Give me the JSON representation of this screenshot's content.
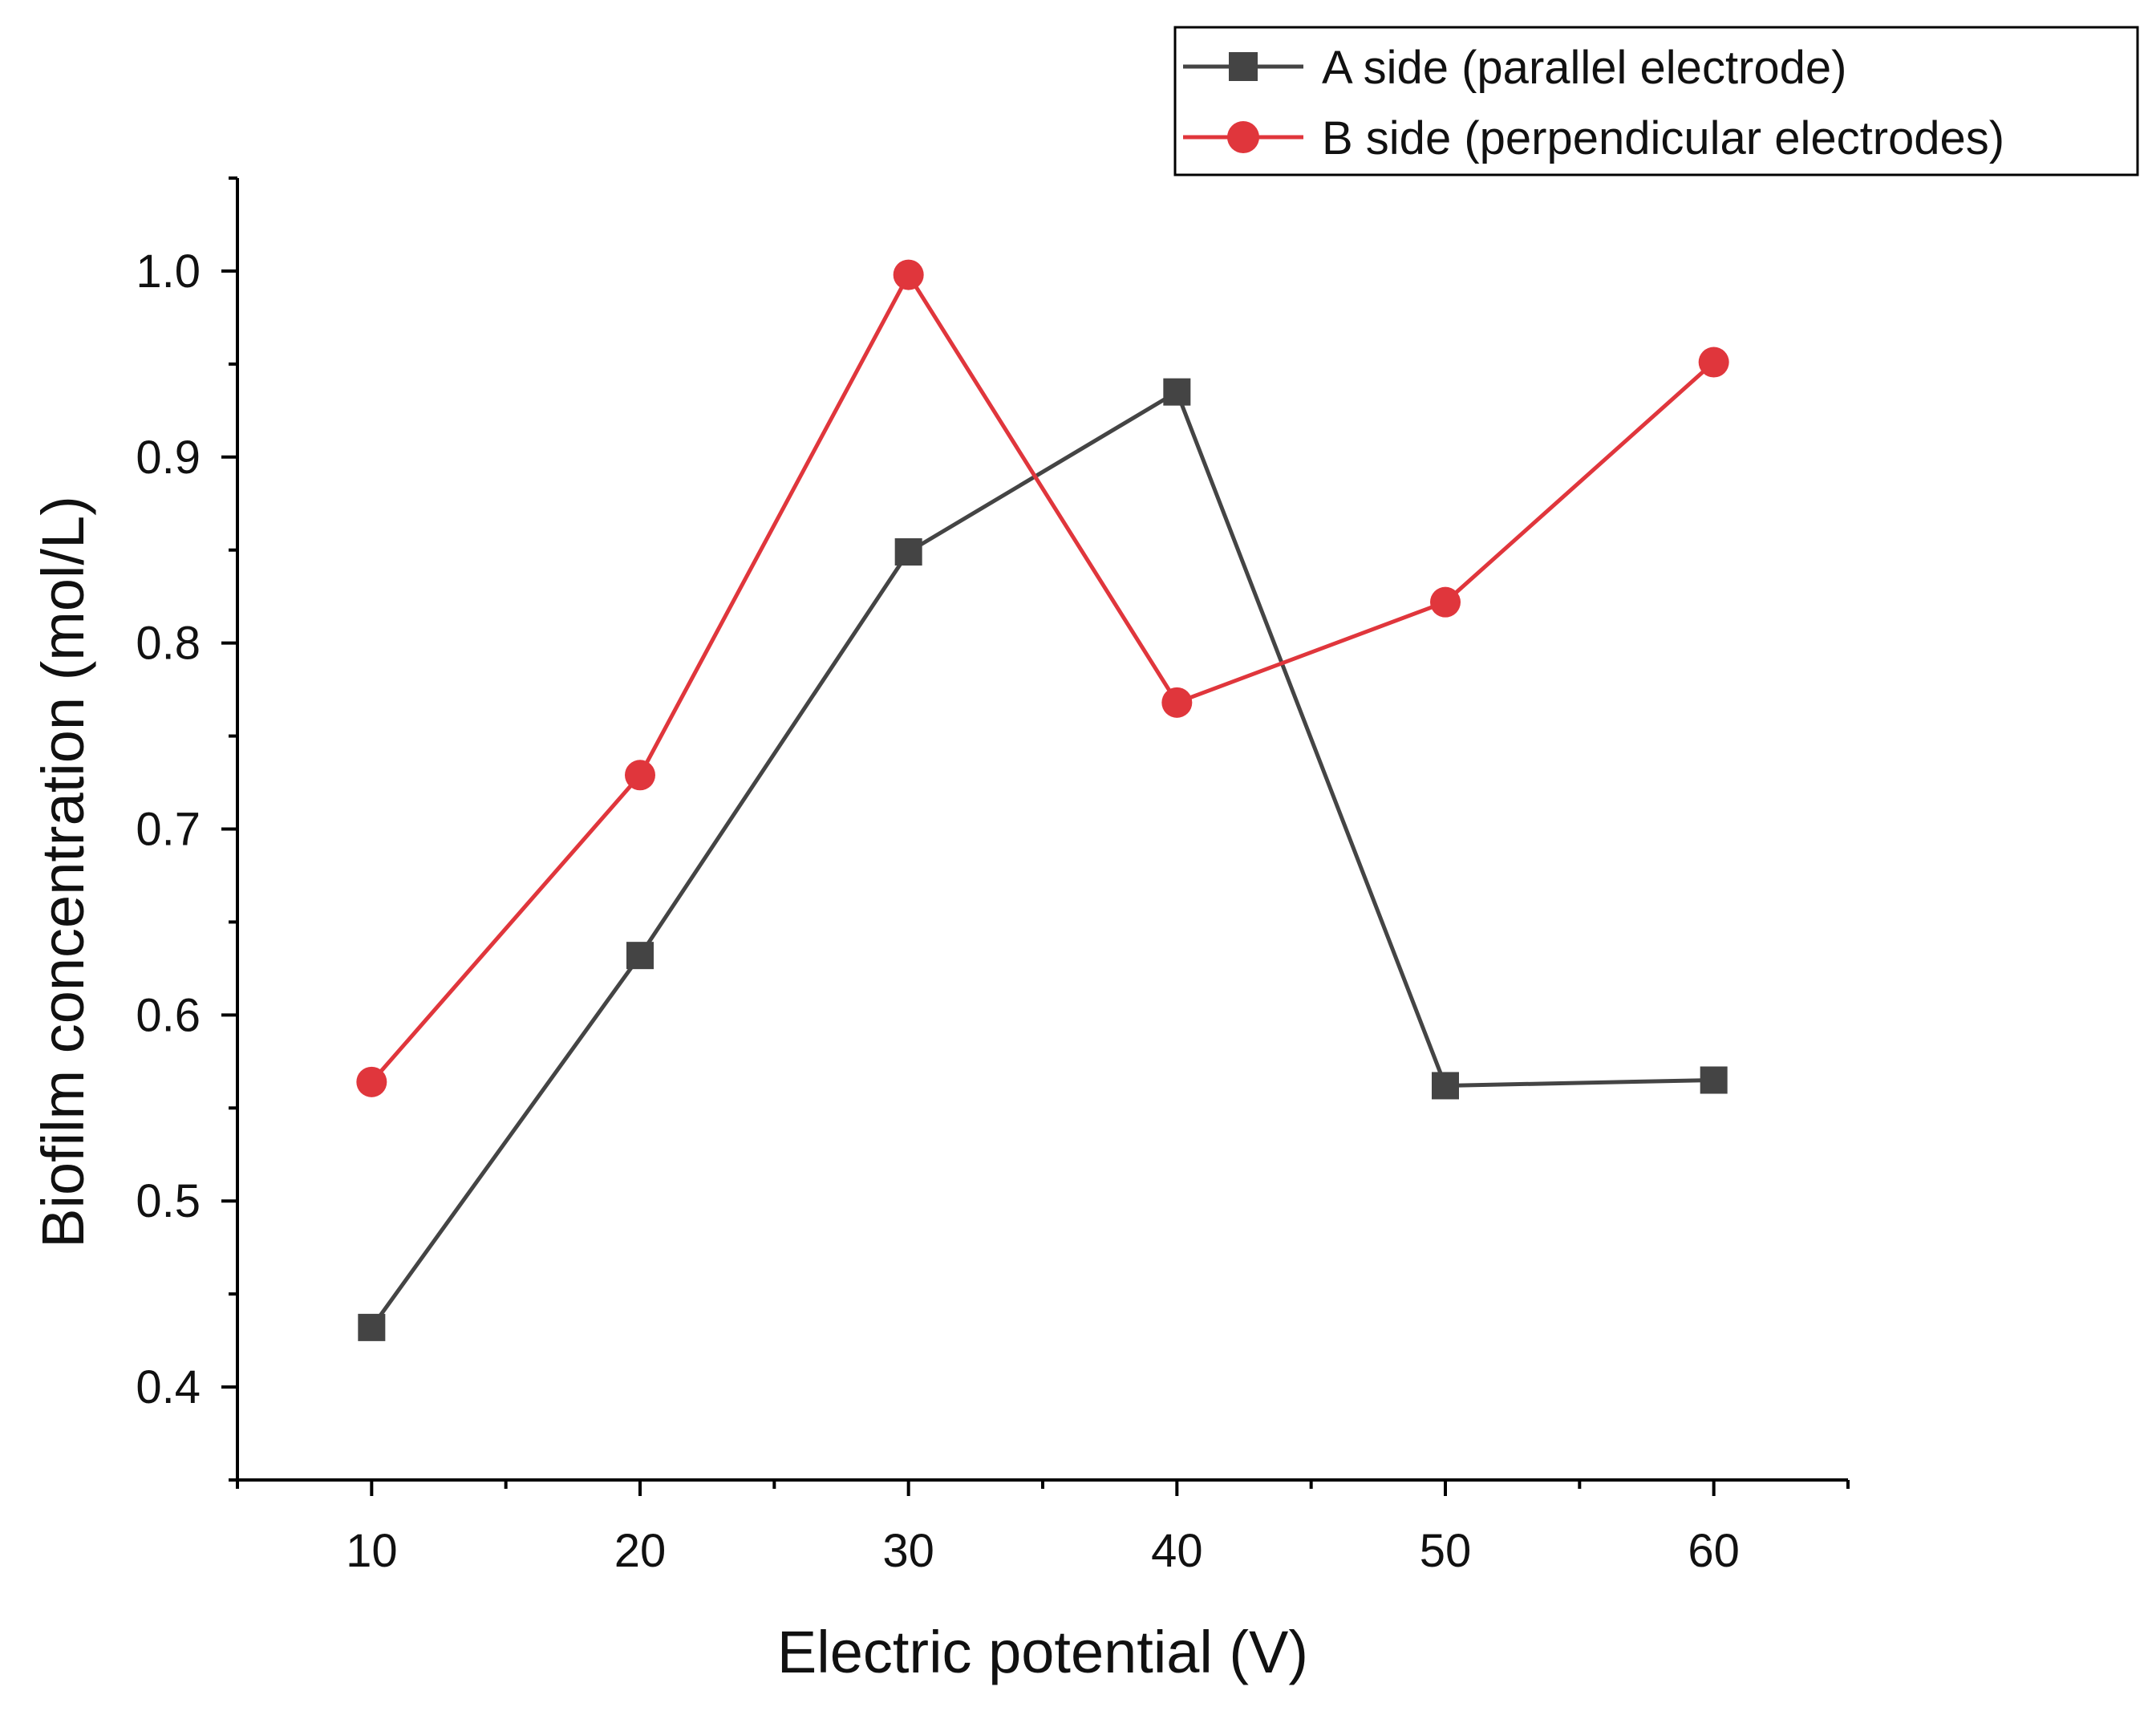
{
  "chart_data": {
    "type": "line",
    "title": "",
    "xlabel": "Electric potential (V)",
    "ylabel": "Biofilm concentration (mol/L)",
    "xlim": [
      5,
      65
    ],
    "ylim": [
      0.35,
      1.05
    ],
    "x_ticks": [
      10,
      20,
      30,
      40,
      50,
      60
    ],
    "x_minor_ticks": [
      5,
      15,
      25,
      35,
      45,
      55,
      65
    ],
    "y_ticks": [
      0.4,
      0.5,
      0.6,
      0.7,
      0.8,
      0.9,
      1.0
    ],
    "y_tick_labels": [
      "0.4",
      "0.5",
      "0.6",
      "0.7",
      "0.8",
      "0.9",
      "1.0"
    ],
    "y_minor_ticks": [
      0.35,
      0.45,
      0.55,
      0.65,
      0.75,
      0.85,
      0.95,
      1.05
    ],
    "grid": false,
    "legend_position": "top-right",
    "series": [
      {
        "name": "A side (parallel electrode)",
        "color": "#444444",
        "marker": "square",
        "x": [
          10,
          20,
          30,
          40,
          50,
          60
        ],
        "values": [
          0.432,
          0.632,
          0.849,
          0.935,
          0.562,
          0.565
        ]
      },
      {
        "name": "B side (perpendicular electrodes)",
        "color": "#e0363c",
        "marker": "circle",
        "x": [
          10,
          20,
          30,
          40,
          50,
          60
        ],
        "values": [
          0.564,
          0.729,
          0.998,
          0.768,
          0.822,
          0.951
        ]
      }
    ]
  }
}
